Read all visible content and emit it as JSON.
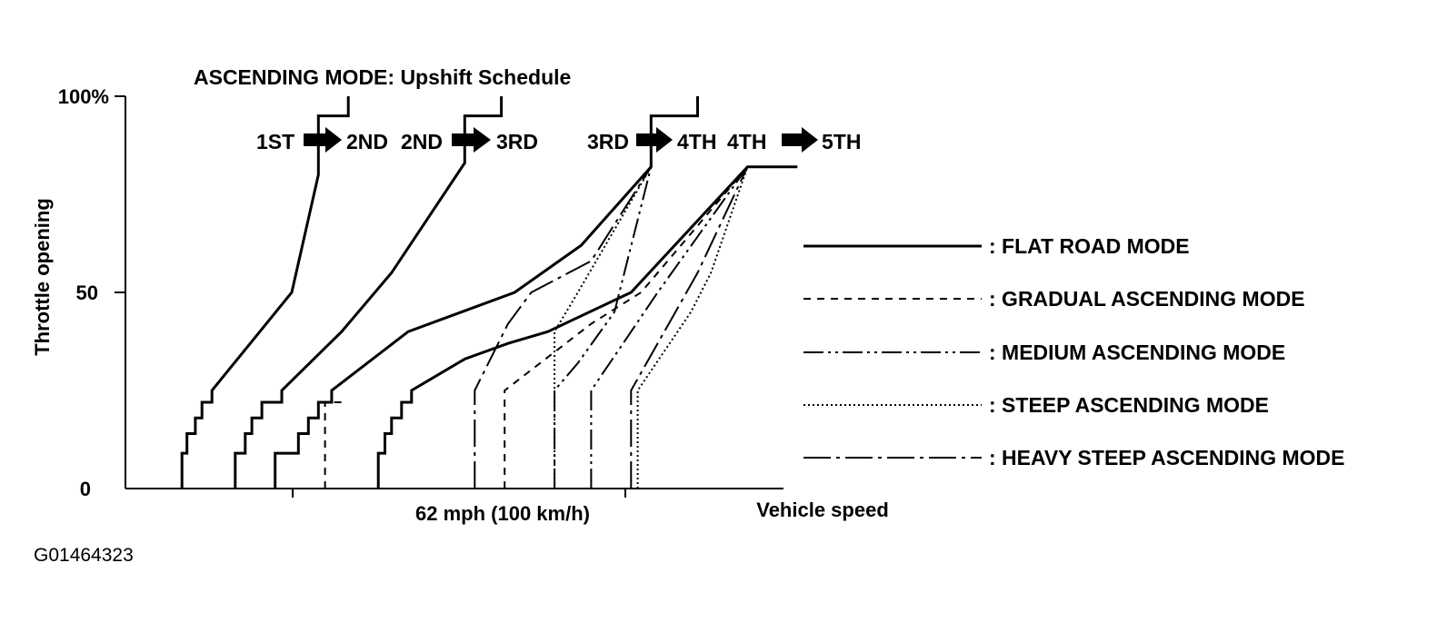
{
  "chart_data": {
    "type": "line",
    "title": "ASCENDING MODE: Upshift Schedule",
    "xlabel": "Vehicle speed",
    "ylabel": "Throttle opening",
    "x_tick_label": "62 mph (100 km/h)",
    "y_ticks": [
      "100%",
      "50",
      "0"
    ],
    "ylim": [
      0,
      100
    ],
    "gear_labels": [
      {
        "from": "1ST",
        "to": "2ND"
      },
      {
        "from": "2ND",
        "to": "3RD"
      },
      {
        "from": "3RD",
        "to": "4TH"
      },
      {
        "from": "4TH",
        "to": "5TH"
      }
    ],
    "legend_position": "right",
    "series": [
      {
        "name": ": FLAT ROAD MODE",
        "dash": "solid"
      },
      {
        "name": ": GRADUAL ASCENDING MODE",
        "dash": "dashed"
      },
      {
        "name": ": MEDIUM ASCENDING MODE",
        "dash": "dash-dot-dot"
      },
      {
        "name": ": STEEP ASCENDING MODE",
        "dash": "dotted"
      },
      {
        "name": ": HEAVY STEEP ASCENDING MODE",
        "dash": "long-dash-dot"
      }
    ],
    "x_units_note": "0-100 arbitrary scale; 62 mph tick at ~50",
    "curves": {
      "flat_1_2": [
        [
          17,
          0
        ],
        [
          17,
          9
        ],
        [
          18.5,
          9
        ],
        [
          18.5,
          14
        ],
        [
          21,
          14
        ],
        [
          21,
          18
        ],
        [
          23,
          18
        ],
        [
          23,
          22
        ],
        [
          26,
          22
        ],
        [
          26,
          25
        ],
        [
          50,
          50
        ],
        [
          58,
          80
        ],
        [
          58,
          85
        ],
        [
          58,
          95
        ],
        [
          67,
          95
        ],
        [
          67,
          100
        ]
      ],
      "flat_2_3": [
        [
          33,
          0
        ],
        [
          33,
          9
        ],
        [
          36,
          9
        ],
        [
          36,
          14
        ],
        [
          38,
          14
        ],
        [
          38,
          18
        ],
        [
          41,
          18
        ],
        [
          41,
          22
        ],
        [
          47,
          22
        ],
        [
          47,
          25
        ],
        [
          65,
          40
        ],
        [
          80,
          55
        ],
        [
          102,
          83
        ],
        [
          102,
          88
        ],
        [
          102,
          95
        ],
        [
          113,
          95
        ],
        [
          113,
          100
        ]
      ],
      "flat_3_4": [
        [
          45,
          0
        ],
        [
          45,
          9
        ],
        [
          52,
          9
        ],
        [
          52,
          14
        ],
        [
          55,
          14
        ],
        [
          55,
          18
        ],
        [
          58,
          18
        ],
        [
          58,
          22
        ],
        [
          62,
          22
        ],
        [
          62,
          25
        ],
        [
          85,
          40
        ],
        [
          117,
          50
        ],
        [
          137,
          62
        ],
        [
          158,
          82
        ],
        [
          158,
          88
        ],
        [
          158,
          95
        ],
        [
          172,
          95
        ],
        [
          172,
          100
        ]
      ],
      "flat_4_5": [
        [
          76,
          0
        ],
        [
          76,
          9
        ],
        [
          78,
          9
        ],
        [
          78,
          14
        ],
        [
          80,
          14
        ],
        [
          80,
          18
        ],
        [
          83,
          18
        ],
        [
          83,
          22
        ],
        [
          86,
          22
        ],
        [
          86,
          25
        ],
        [
          102,
          33
        ],
        [
          115,
          37
        ],
        [
          127,
          40
        ],
        [
          152,
          50
        ],
        [
          187,
          82
        ],
        [
          202,
          82
        ]
      ],
      "gradual_2_3": [
        [
          60,
          0
        ],
        [
          60,
          22
        ],
        [
          65,
          22
        ]
      ],
      "gradual_4_5": [
        [
          114,
          0
        ],
        [
          114,
          25
        ],
        [
          140,
          42
        ],
        [
          155,
          50
        ],
        [
          187,
          82
        ]
      ],
      "medium_3_4": [
        [
          129,
          0
        ],
        [
          129,
          25
        ],
        [
          136,
          32
        ],
        [
          147,
          45
        ],
        [
          158,
          82
        ]
      ],
      "medium_4_5": [
        [
          140,
          0
        ],
        [
          140,
          25
        ],
        [
          160,
          50
        ],
        [
          187,
          82
        ]
      ],
      "steep_3_4": [
        [
          129,
          0
        ],
        [
          129,
          40
        ],
        [
          136,
          50
        ],
        [
          158,
          82
        ]
      ],
      "steep_4_5": [
        [
          154,
          0
        ],
        [
          154,
          25
        ],
        [
          170,
          45
        ],
        [
          176,
          55
        ],
        [
          187,
          82
        ]
      ],
      "heavy_3_4": [
        [
          105,
          0
        ],
        [
          105,
          25
        ],
        [
          115,
          42
        ],
        [
          122,
          50
        ],
        [
          140,
          58
        ],
        [
          158,
          82
        ]
      ],
      "heavy_4_5": [
        [
          152,
          0
        ],
        [
          152,
          25
        ],
        [
          162,
          40
        ],
        [
          172,
          55
        ],
        [
          187,
          82
        ]
      ]
    }
  },
  "figure_id": "G01464323"
}
